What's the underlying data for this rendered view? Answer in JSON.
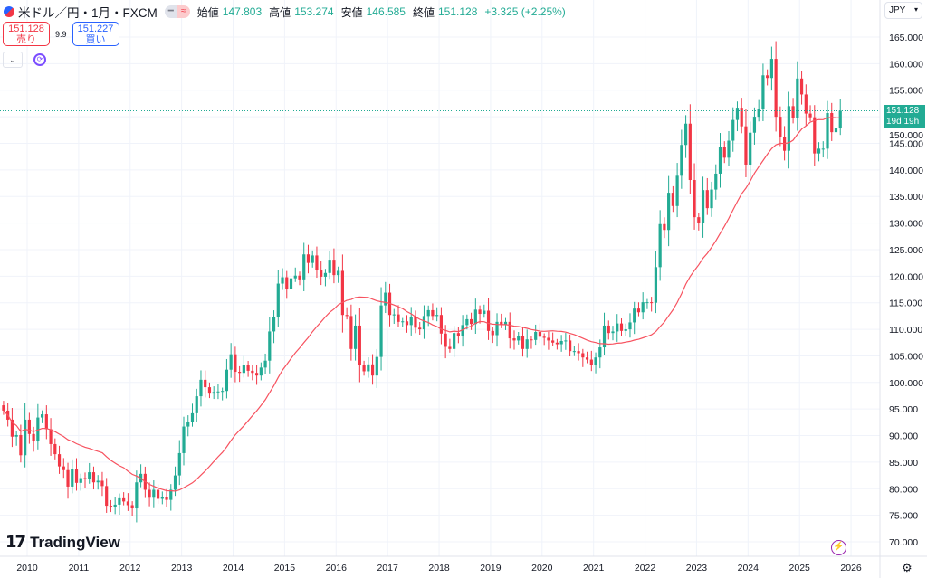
{
  "header": {
    "symbol": "米ドル／円・1月・FXCM",
    "open_label": "始値",
    "open": "147.803",
    "high_label": "高値",
    "high": "153.274",
    "low_label": "安値",
    "low": "146.585",
    "close_label": "終値",
    "close": "151.128",
    "change": "+3.325 (+2.25%)"
  },
  "trade": {
    "sell_price": "151.128",
    "sell_label": "売り",
    "spread": "9.9",
    "buy_price": "151.227",
    "buy_label": "買い"
  },
  "currency": "JPY",
  "price_label": {
    "price": "151.128",
    "countdown": "19d 19h"
  },
  "brand": "TradingView",
  "colors": {
    "up": "#22ab94",
    "down": "#f23645",
    "ma": "#f7525f",
    "grid": "#f0f3fa"
  },
  "chart_data": {
    "type": "candlestick",
    "title": "米ドル／円・1月・FXCM",
    "start": "2009-07",
    "interval": "1M",
    "closes": [
      94.7,
      93.0,
      89.8,
      90.1,
      86.3,
      93.0,
      90.3,
      88.9,
      93.4,
      94.0,
      91.2,
      88.4,
      86.5,
      84.2,
      83.5,
      80.4,
      83.7,
      81.1,
      82.0,
      81.8,
      83.1,
      81.2,
      81.5,
      80.5,
      76.8,
      76.6,
      77.0,
      78.2,
      77.6,
      76.9,
      76.3,
      81.2,
      82.8,
      79.8,
      78.3,
      79.8,
      78.1,
      78.4,
      77.9,
      79.8,
      82.5,
      86.7,
      91.7,
      92.6,
      94.2,
      97.4,
      100.5,
      99.1,
      97.9,
      98.2,
      98.3,
      98.4,
      102.4,
      105.3,
      102.0,
      101.8,
      103.2,
      102.2,
      101.8,
      101.3,
      102.8,
      104.1,
      109.6,
      112.3,
      118.6,
      119.8,
      117.5,
      119.6,
      120.1,
      119.4,
      124.1,
      122.5,
      123.9,
      121.2,
      119.9,
      120.6,
      123.1,
      120.2,
      121.0,
      112.7,
      112.5,
      106.3,
      110.7,
      103.2,
      102.1,
      103.4,
      101.3,
      104.8,
      114.5,
      116.9,
      112.7,
      112.8,
      111.4,
      111.5,
      110.8,
      112.4,
      110.3,
      110.0,
      112.5,
      113.6,
      112.5,
      112.7,
      109.2,
      106.7,
      106.3,
      109.3,
      108.8,
      110.8,
      111.9,
      111.0,
      113.7,
      112.9,
      113.5,
      109.7,
      108.9,
      111.4,
      110.9,
      111.4,
      108.3,
      107.9,
      108.7,
      106.3,
      108.1,
      108.0,
      109.5,
      108.6,
      108.4,
      107.9,
      107.5,
      107.2,
      107.8,
      107.9,
      105.9,
      105.9,
      105.5,
      104.7,
      104.3,
      103.3,
      104.7,
      106.6,
      110.7,
      109.3,
      109.6,
      111.1,
      109.7,
      110.0,
      111.3,
      113.9,
      113.2,
      115.1,
      115.1,
      115.0,
      121.7,
      129.8,
      128.7,
      135.7,
      133.2,
      138.9,
      144.7,
      148.7,
      138.1,
      131.1,
      130.1,
      136.2,
      132.8,
      136.3,
      139.3,
      144.3,
      142.3,
      145.5,
      149.4,
      151.7,
      148.2,
      141.0,
      147.0,
      150.0,
      151.4,
      157.8,
      157.3,
      160.9,
      150.0,
      146.2,
      143.6,
      152.0,
      149.8,
      157.2,
      154.2,
      150.6,
      149.9,
      143.1,
      144.0,
      144.0,
      150.7,
      147.1,
      147.803,
      151.128
    ],
    "last_candle": {
      "open": 147.803,
      "high": 153.274,
      "low": 146.585,
      "close": 151.128
    },
    "ma_period": 24,
    "x_ticks": [
      "2010",
      "2011",
      "2012",
      "2013",
      "2014",
      "2015",
      "2016",
      "2017",
      "2018",
      "2019",
      "2020",
      "2021",
      "2022",
      "2023",
      "2024",
      "2025",
      "2026"
    ],
    "y_ticks": [
      "70.000",
      "75.000",
      "80.000",
      "85.000",
      "90.000",
      "95.000",
      "100.000",
      "105.000",
      "110.000",
      "115.000",
      "120.000",
      "125.000",
      "130.000",
      "135.000",
      "140.000",
      "145.000",
      "150.000",
      "155.000",
      "160.000",
      "165.000"
    ],
    "ylim": [
      70,
      165
    ]
  }
}
